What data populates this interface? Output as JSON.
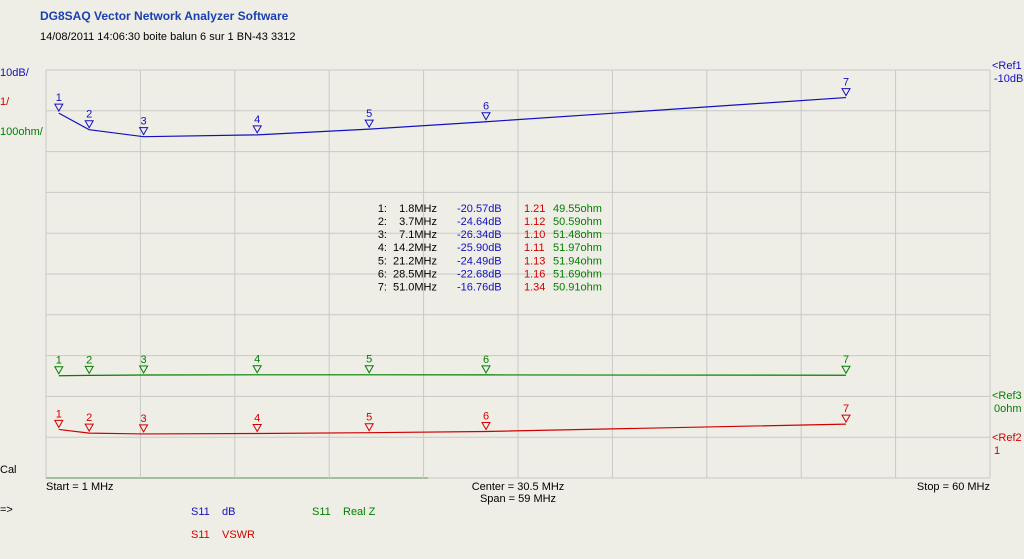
{
  "header": {
    "title": "DG8SAQ Vector Network Analyzer Software",
    "info": "14/08/2011   14:06:30   boite balun 6 sur 1 BN-43 3312"
  },
  "left_labels": {
    "db_scale": "10dB/",
    "vswr_scale": "1/",
    "ohm_scale": "100ohm/",
    "cal": "Cal",
    "prompt": "=>"
  },
  "refs": {
    "ref1": "<Ref1",
    "ref1_value": "-10dB",
    "ref3": "<Ref3",
    "ref3_value": "0ohm",
    "ref2": "<Ref2",
    "ref2_value": "1"
  },
  "sweep": {
    "start": "Start = 1 MHz",
    "center": "Center = 30.5 MHz",
    "span": "Span = 59 MHz",
    "stop": "Stop = 60 MHz"
  },
  "legend": [
    {
      "param": "S11",
      "name": "dB"
    },
    {
      "param": "S11",
      "name": "Real Z"
    },
    {
      "param": "S11",
      "name": "VSWR"
    }
  ],
  "markers": [
    {
      "id": "1",
      "key": "1:",
      "freq": "1.8MHz",
      "db": "-20.57dB",
      "vswr": "1.21",
      "ohm": "49.55ohm"
    },
    {
      "id": "2",
      "key": "2:",
      "freq": "3.7MHz",
      "db": "-24.64dB",
      "vswr": "1.12",
      "ohm": "50.59ohm"
    },
    {
      "id": "3",
      "key": "3:",
      "freq": "7.1MHz",
      "db": "-26.34dB",
      "vswr": "1.10",
      "ohm": "51.48ohm"
    },
    {
      "id": "4",
      "key": "4:",
      "freq": "14.2MHz",
      "db": "-25.90dB",
      "vswr": "1.11",
      "ohm": "51.97ohm"
    },
    {
      "id": "5",
      "key": "5:",
      "freq": "21.2MHz",
      "db": "-24.49dB",
      "vswr": "1.13",
      "ohm": "51.94ohm"
    },
    {
      "id": "6",
      "key": "6:",
      "freq": "28.5MHz",
      "db": "-22.68dB",
      "vswr": "1.16",
      "ohm": "51.69ohm"
    },
    {
      "id": "7",
      "key": "7:",
      "freq": "51.0MHz",
      "db": "-16.76dB",
      "vswr": "1.34",
      "ohm": "50.91ohm"
    }
  ]
}
